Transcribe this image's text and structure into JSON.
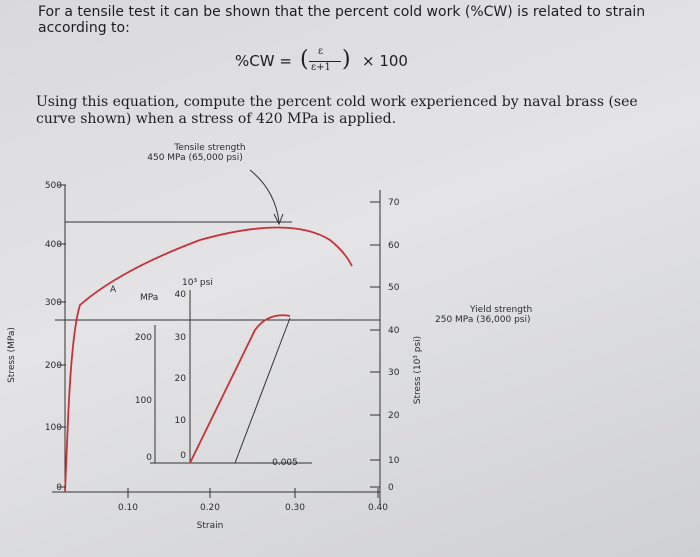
{
  "problem": {
    "intro": "For a tensile test it can be shown that the percent cold work (%CW) is related to strain according to:",
    "equation": {
      "lhs": "%CW =",
      "numerator": "ε",
      "denominator": "ε+1",
      "factor": "× 100"
    },
    "question": "Using this equation, compute the percent cold work experienced by naval brass (see curve shown) when a stress of 420 MPa is applied."
  },
  "figure": {
    "tensile_label": [
      "Tensile strength",
      "450 MPa (65,000 psi)"
    ],
    "yield_label": [
      "Yield strength",
      "250 MPa (36,000 psi)"
    ],
    "point_label": "A",
    "left_axis": {
      "label": "Stress (MPa)",
      "ticks": [
        "500",
        "400",
        "300",
        "200",
        "100",
        "0"
      ]
    },
    "right_axis": {
      "label": "Stress (10³ psi)",
      "ticks": [
        "70",
        "60",
        "50",
        "40",
        "30",
        "20",
        "10",
        "0"
      ]
    },
    "x_axis": {
      "label": "Strain",
      "ticks": [
        "0.10",
        "0.20",
        "0.30",
        "0.40"
      ]
    },
    "inset": {
      "left_unit": "MPa",
      "right_unit": "10³ psi",
      "left_ticks": [
        "200",
        "100",
        "0"
      ],
      "right_ticks": [
        "40",
        "30",
        "20",
        "10",
        "0"
      ],
      "x_tick": "0.005"
    }
  }
}
